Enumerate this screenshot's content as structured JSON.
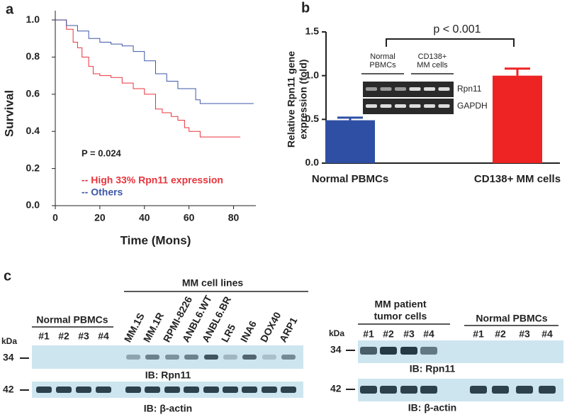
{
  "chart_data": [
    {
      "panel": "a",
      "type": "line",
      "step": true,
      "xlabel": "Time (Mons)",
      "ylabel": "Survival",
      "xlim": [
        0,
        90
      ],
      "ylim": [
        0,
        1.05
      ],
      "xticks": [
        0,
        20,
        40,
        60,
        80
      ],
      "yticks": [
        {
          "value": 0,
          "label": "0.0"
        },
        0.2,
        0.4,
        0.6,
        0.8,
        {
          "value": 1,
          "label": "1.0"
        }
      ],
      "annotation": "P = 0.024",
      "series": [
        {
          "name": "-- High 33% Rpn11 expression",
          "color": "#e8343c",
          "x": [
            0,
            5,
            8,
            10,
            12,
            15,
            17,
            20,
            25,
            30,
            35,
            40,
            45,
            48,
            52,
            55,
            58,
            60,
            65,
            83
          ],
          "values": [
            1.0,
            0.95,
            0.88,
            0.85,
            0.8,
            0.75,
            0.71,
            0.7,
            0.69,
            0.66,
            0.63,
            0.6,
            0.52,
            0.5,
            0.48,
            0.46,
            0.42,
            0.4,
            0.37,
            0.37
          ]
        },
        {
          "name": "-- Others",
          "color": "#3d57a8",
          "x": [
            0,
            5,
            10,
            15,
            20,
            25,
            30,
            35,
            40,
            45,
            50,
            55,
            62,
            63,
            65,
            89
          ],
          "values": [
            1.0,
            0.97,
            0.94,
            0.9,
            0.88,
            0.87,
            0.86,
            0.83,
            0.78,
            0.71,
            0.67,
            0.63,
            0.63,
            0.57,
            0.55,
            0.55
          ]
        }
      ]
    },
    {
      "panel": "b",
      "type": "bar",
      "ylabel": [
        "Relative Rpn11 gene",
        "expression (fold)"
      ],
      "categories": [
        "Normal PBMCs",
        "CD138+ MM cells"
      ],
      "values": [
        0.49,
        1.0
      ],
      "errors": [
        0.03,
        0.08
      ],
      "colors": [
        "#2e4fa3",
        "#ee2424"
      ],
      "ylim": [
        0,
        1.5
      ],
      "yticks": [
        {
          "value": 0,
          "label": "0.0"
        },
        0.5,
        {
          "value": 1,
          "label": "1.0"
        },
        1.5
      ],
      "annotation": "p < 0.001",
      "inset": {
        "groups": [
          [
            "Normal",
            "PBMCs"
          ],
          [
            "CD138+",
            "MM cells"
          ]
        ],
        "rows": [
          "Rpn11",
          "GAPDH"
        ]
      }
    }
  ],
  "blots": {
    "panel": "c",
    "left": {
      "group_top": "MM cell lines",
      "group_normal": "Normal PBMCs",
      "normal_lanes": [
        "#1",
        "#2",
        "#3",
        "#4"
      ],
      "mm_lanes": [
        "MM.1S",
        "MM.1R",
        "RPMI-8226",
        "ANBL6.WT",
        "ANBL6.BR",
        "LR5",
        "INA6",
        "DOX40",
        "ARP1"
      ],
      "kda": "kDa",
      "markers": [
        "34",
        "42"
      ],
      "ib": [
        "IB: Rpn11",
        "IB: β-actin"
      ]
    },
    "right": {
      "group_patient": [
        "MM patient",
        "tumor cells"
      ],
      "group_normal": "Normal PBMCs",
      "patient_lanes": [
        "#1",
        "#2",
        "#3",
        "#4"
      ],
      "normal_lanes": [
        "#1",
        "#2",
        "#3",
        "#4"
      ],
      "kda": "kDa",
      "markers": [
        "34",
        "42"
      ],
      "ib": [
        "IB: Rpn11",
        "IB: β-actin"
      ]
    }
  }
}
